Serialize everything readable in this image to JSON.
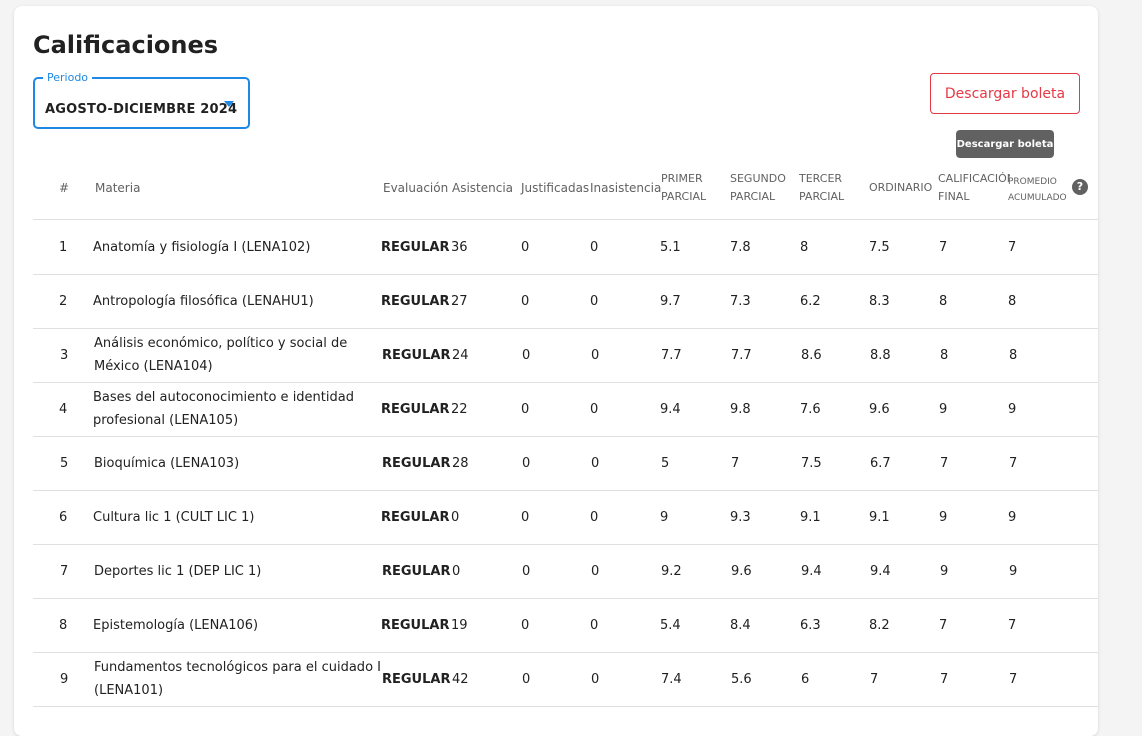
{
  "page": {
    "title": "Calificaciones"
  },
  "period": {
    "label": "Periodo",
    "value": "AGOSTO-DICIEMBRE 2024"
  },
  "actions": {
    "download_label": "Descargar boleta",
    "tooltip": "Descargar boleta"
  },
  "table": {
    "headers": {
      "num": "#",
      "materia": "Materia",
      "evaluacion": "Evaluación",
      "asistencia": "Asistencia",
      "justificadas": "Justificadas",
      "inasistencia": "Inasistencia",
      "p1_a": "PRIMER",
      "p1_b": "PARCIAL",
      "p2_a": "SEGUNDO",
      "p2_b": "PARCIAL",
      "p3_a": "TERCER",
      "p3_b": "PARCIAL",
      "ordinario": "ORDINARIO",
      "final_a": "CALIFICACIÓN",
      "final_b": "FINAL",
      "prom_a": "PROMEDIO",
      "prom_b": "ACUMULADO"
    },
    "rows": [
      {
        "num": "1",
        "materia": "Anatomía y fisiología I (LENA102)",
        "evaluacion": "REGULAR",
        "asistencia": "36",
        "justificadas": "0",
        "inasistencia": "0",
        "p1": "5.1",
        "p2": "7.8",
        "p3": "8",
        "ordinario": "7.5",
        "final": "7",
        "promedio": "7"
      },
      {
        "num": "2",
        "materia": "Antropología filosófica (LENAHU1)",
        "evaluacion": "REGULAR",
        "asistencia": "27",
        "justificadas": "0",
        "inasistencia": "0",
        "p1": "9.7",
        "p2": "7.3",
        "p3": "6.2",
        "ordinario": "8.3",
        "final": "8",
        "promedio": "8"
      },
      {
        "num": "3",
        "materia": "Análisis económico, político y social de México (LENA104)",
        "evaluacion": "REGULAR",
        "asistencia": "24",
        "justificadas": "0",
        "inasistencia": "0",
        "p1": "7.7",
        "p2": "7.7",
        "p3": "8.6",
        "ordinario": "8.8",
        "final": "8",
        "promedio": "8"
      },
      {
        "num": "4",
        "materia": "Bases del autoconocimiento e identidad profesional (LENA105)",
        "evaluacion": "REGULAR",
        "asistencia": "22",
        "justificadas": "0",
        "inasistencia": "0",
        "p1": "9.4",
        "p2": "9.8",
        "p3": "7.6",
        "ordinario": "9.6",
        "final": "9",
        "promedio": "9"
      },
      {
        "num": "5",
        "materia": "Bioquímica (LENA103)",
        "evaluacion": "REGULAR",
        "asistencia": "28",
        "justificadas": "0",
        "inasistencia": "0",
        "p1": "5",
        "p2": "7",
        "p3": "7.5",
        "ordinario": "6.7",
        "final": "7",
        "promedio": "7"
      },
      {
        "num": "6",
        "materia": "Cultura lic 1 (CULT LIC 1)",
        "evaluacion": "REGULAR",
        "asistencia": "0",
        "justificadas": "0",
        "inasistencia": "0",
        "p1": "9",
        "p2": "9.3",
        "p3": "9.1",
        "ordinario": "9.1",
        "final": "9",
        "promedio": "9"
      },
      {
        "num": "7",
        "materia": "Deportes lic 1 (DEP LIC 1)",
        "evaluacion": "REGULAR",
        "asistencia": "0",
        "justificadas": "0",
        "inasistencia": "0",
        "p1": "9.2",
        "p2": "9.6",
        "p3": "9.4",
        "ordinario": "9.4",
        "final": "9",
        "promedio": "9"
      },
      {
        "num": "8",
        "materia": "Epistemología (LENA106)",
        "evaluacion": "REGULAR",
        "asistencia": "19",
        "justificadas": "0",
        "inasistencia": "0",
        "p1": "5.4",
        "p2": "8.4",
        "p3": "6.3",
        "ordinario": "8.2",
        "final": "7",
        "promedio": "7"
      },
      {
        "num": "9",
        "materia": "Fundamentos tecnológicos para el cuidado I (LENA101)",
        "evaluacion": "REGULAR",
        "asistencia": "42",
        "justificadas": "0",
        "inasistencia": "0",
        "p1": "7.4",
        "p2": "5.6",
        "p3": "6",
        "ordinario": "7",
        "final": "7",
        "promedio": "7"
      }
    ]
  },
  "colors": {
    "accent": "#1e88e5",
    "danger": "#e53946",
    "tooltip_bg": "#616161"
  },
  "icons": {
    "period_caret": "caret-down-icon",
    "header_info": "info-icon"
  }
}
